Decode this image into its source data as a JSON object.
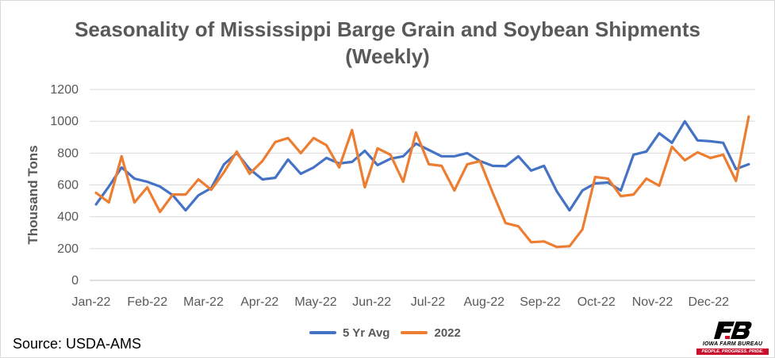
{
  "chart_data": {
    "type": "line",
    "title_line1": "Seasonality of Mississippi Barge Grain and Soybean Shipments",
    "title_line2": "(Weekly)",
    "ylabel": "Thousand Tons",
    "xlabel": "",
    "ylim": [
      0,
      1200
    ],
    "yticks": [
      0,
      200,
      400,
      600,
      800,
      1000,
      1200
    ],
    "month_labels": [
      "Jan-22",
      "Feb-22",
      "Mar-22",
      "Apr-22",
      "May-22",
      "Jun-22",
      "Jul-22",
      "Aug-22",
      "Sep-22",
      "Oct-22",
      "Nov-22",
      "Dec-22"
    ],
    "grid": "horizontal",
    "legend_position": "bottom",
    "series": [
      {
        "name": "5 Yr Avg",
        "color": "#4472c4",
        "values": [
          478,
          590,
          710,
          640,
          620,
          590,
          535,
          440,
          535,
          580,
          730,
          800,
          700,
          635,
          645,
          760,
          670,
          710,
          770,
          735,
          745,
          815,
          725,
          765,
          780,
          860,
          820,
          780,
          780,
          800,
          750,
          720,
          718,
          780,
          690,
          720,
          560,
          440,
          565,
          610,
          615,
          565,
          790,
          810,
          925,
          865,
          1000,
          880,
          875,
          865,
          700,
          730
        ]
      },
      {
        "name": "2022",
        "color": "#ed7d31",
        "values": [
          550,
          490,
          780,
          490,
          585,
          430,
          540,
          540,
          635,
          570,
          680,
          810,
          670,
          750,
          870,
          895,
          800,
          895,
          850,
          710,
          945,
          585,
          830,
          790,
          620,
          930,
          730,
          720,
          565,
          730,
          750,
          550,
          360,
          340,
          240,
          245,
          210,
          215,
          320,
          650,
          640,
          530,
          540,
          640,
          595,
          840,
          755,
          805,
          770,
          790,
          625,
          1030
        ]
      }
    ]
  },
  "footer": {
    "source": "Source: USDA-AMS",
    "logo_name": "IOWA FARM BUREAU",
    "logo_tagline": "PEOPLE. PROGRESS. PRIDE."
  }
}
